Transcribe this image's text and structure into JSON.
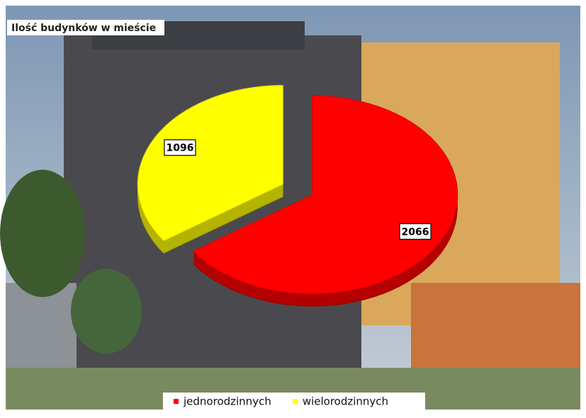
{
  "chart_data": {
    "type": "pie",
    "title": "Ilość budynków w mieście",
    "categories": [
      "jednorodzinnych",
      "wielorodzinnych"
    ],
    "values": [
      2066,
      1096
    ],
    "colors": [
      "#ff0000",
      "#ffff00"
    ],
    "legend": "bottom"
  }
}
